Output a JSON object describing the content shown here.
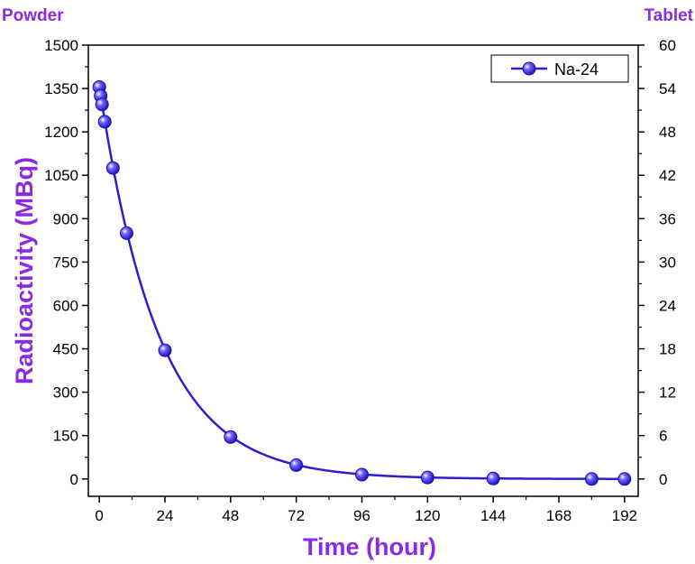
{
  "chart_data": {
    "type": "line",
    "title": "",
    "left_corner_label": "Powder",
    "right_corner_label": "Tablet",
    "xlabel": "Time (hour)",
    "ylabel": "Radioactivity (MBq)",
    "xlim": [
      -4,
      197
    ],
    "ylim": [
      -60,
      1500
    ],
    "x_ticks": [
      0,
      24,
      48,
      72,
      96,
      120,
      144,
      168,
      192
    ],
    "x_tick_labels": [
      "0",
      "24",
      "48",
      "72",
      "96",
      "120",
      "144",
      "168",
      "192"
    ],
    "y_ticks": [
      0,
      150,
      300,
      450,
      600,
      750,
      900,
      1050,
      1200,
      1350,
      1500
    ],
    "y_tick_labels": [
      "0",
      "150",
      "300",
      "450",
      "600",
      "750",
      "900",
      "1050",
      "1200",
      "1350",
      "1500"
    ],
    "y2_ticks": [
      0,
      6,
      12,
      18,
      24,
      30,
      36,
      42,
      48,
      54,
      60
    ],
    "y2_tick_labels": [
      "0",
      "6",
      "12",
      "18",
      "24",
      "30",
      "36",
      "42",
      "48",
      "54",
      "60"
    ],
    "y2lim": [
      -2.4,
      60
    ],
    "series": [
      {
        "name": "Na-24",
        "x": [
          0,
          0.5,
          1,
          2,
          5,
          10,
          24,
          48,
          72,
          96,
          120,
          144,
          180,
          192
        ],
        "y": [
          1355,
          1325,
          1295,
          1235,
          1075,
          850,
          445,
          145,
          48,
          15,
          5,
          1.5,
          0,
          0
        ]
      }
    ],
    "fit_curve": {
      "A0": 1360,
      "half_life_hours": 15
    },
    "legend_position": "top-right",
    "grid": false,
    "colors": {
      "line": "#2b1fcf",
      "marker": "#3a2bf0",
      "labels": "#8a2be2",
      "axes": "#000000"
    }
  }
}
